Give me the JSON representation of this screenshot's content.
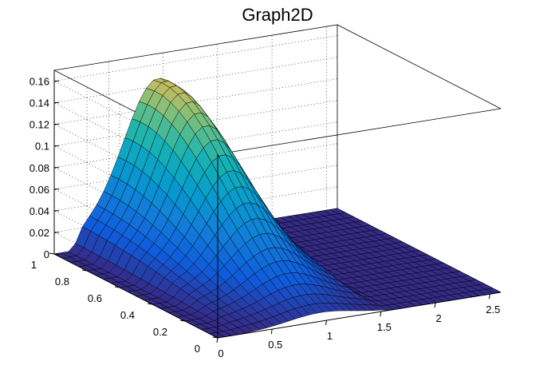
{
  "chart_data": {
    "type": "surface",
    "title": "Graph2D",
    "xlabel": "",
    "ylabel": "",
    "zlabel": "",
    "xlim": [
      0,
      2.6
    ],
    "ylim": [
      0,
      1
    ],
    "zlim": [
      0,
      0.17
    ],
    "x_ticks": [
      0,
      0.5,
      1,
      1.5,
      2,
      2.5
    ],
    "y_ticks": [
      0,
      0.2,
      0.4,
      0.6,
      0.8,
      1
    ],
    "z_ticks": [
      0,
      0.02,
      0.04,
      0.06,
      0.08,
      0.1,
      0.12,
      0.14,
      0.16
    ],
    "grid": true,
    "colormap": "parula",
    "colors": {
      "low": "#352a87",
      "mid": "#14b4b4",
      "high": "#f9fb0e"
    },
    "surface_grid": {
      "x_count": 40,
      "y_count": 20,
      "peak_x": 0.95,
      "peak_y": 0.9,
      "peak_z": 0.165,
      "region_x_min": 0.15,
      "region_x_max": 1.6
    }
  }
}
